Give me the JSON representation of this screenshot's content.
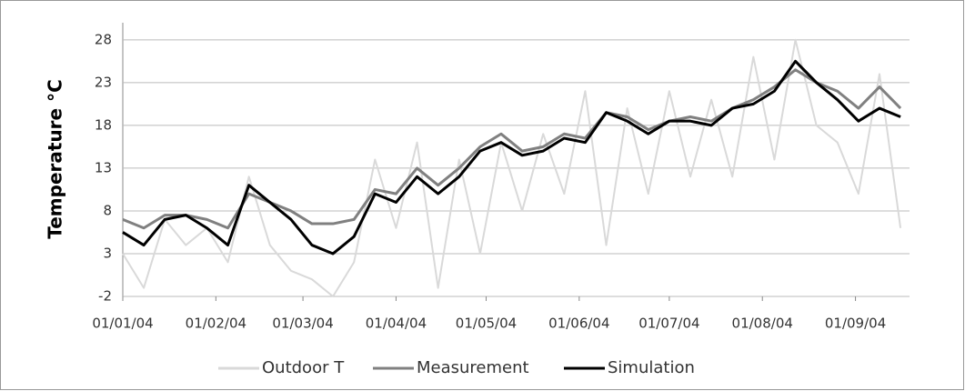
{
  "chart_data": {
    "type": "line",
    "y_label": "Temperature °C",
    "x": [
      "01/01/04",
      "08/01/04",
      "15/01/04",
      "22/01/04",
      "29/01/04",
      "05/02/04",
      "12/02/04",
      "19/02/04",
      "26/02/04",
      "04/03/04",
      "11/03/04",
      "18/03/04",
      "25/03/04",
      "01/04/04",
      "08/04/04",
      "15/04/04",
      "22/04/04",
      "29/04/04",
      "06/05/04",
      "13/05/04",
      "20/05/04",
      "27/05/04",
      "03/06/04",
      "10/06/04",
      "17/06/04",
      "24/06/04",
      "01/07/04",
      "08/07/04",
      "15/07/04",
      "22/07/04",
      "29/07/04",
      "05/08/04",
      "12/08/04",
      "19/08/04",
      "26/08/04",
      "02/09/04",
      "09/09/04",
      "16/09/04"
    ],
    "series": [
      {
        "name": "Outdoor T",
        "color": "#d9d9d9",
        "values": [
          3,
          -1,
          7,
          4,
          6,
          2,
          12,
          4,
          1,
          0,
          -2,
          2,
          14,
          6,
          16,
          -1,
          14,
          3,
          16,
          8,
          17,
          10,
          22,
          4,
          20,
          10,
          22,
          12,
          21,
          12,
          26,
          14,
          28,
          18,
          16,
          10,
          24,
          6
        ]
      },
      {
        "name": "Measurement",
        "color": "#808080",
        "values": [
          7,
          6,
          7.5,
          7.5,
          7,
          6,
          10,
          9,
          8,
          6.5,
          6.5,
          7,
          10.5,
          10,
          13,
          11,
          13,
          15.5,
          17,
          15,
          15.5,
          17,
          16.5,
          19.5,
          19,
          17.5,
          18.5,
          19,
          18.5,
          20,
          21,
          22.5,
          24.5,
          23,
          22,
          20,
          22.5,
          20
        ]
      },
      {
        "name": "Simulation",
        "color": "#000000",
        "values": [
          5.5,
          4,
          7,
          7.5,
          6,
          4,
          11,
          9,
          7,
          4,
          3,
          5,
          10,
          9,
          12,
          10,
          12,
          15,
          16,
          14.5,
          15,
          16.5,
          16,
          19.5,
          18.5,
          17,
          18.5,
          18.5,
          18,
          20,
          20.5,
          22,
          25.5,
          23,
          21,
          18.5,
          20,
          19
        ]
      }
    ],
    "xlim": [
      "01/01/04",
      "19/09/04"
    ],
    "xticks": [
      "01/01/04",
      "01/02/04",
      "01/03/04",
      "01/04/04",
      "01/05/04",
      "01/06/04",
      "01/07/04",
      "01/08/04",
      "01/09/04"
    ],
    "ylim": [
      -2,
      30
    ],
    "yticks": [
      -2,
      3,
      8,
      13,
      18,
      23,
      28
    ],
    "grid": true,
    "legend": "bottom"
  }
}
